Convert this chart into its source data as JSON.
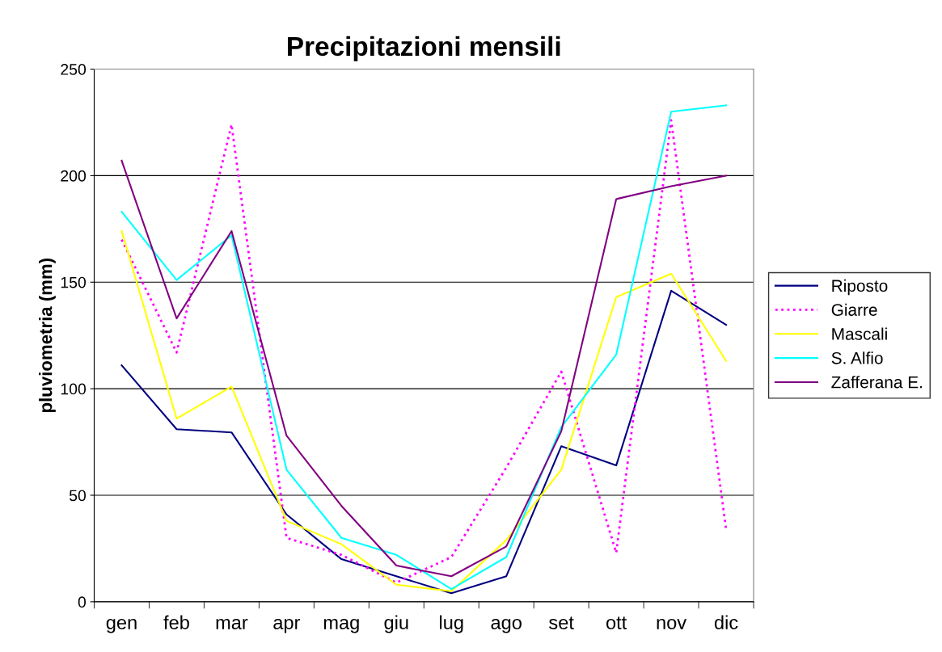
{
  "chart_data": {
    "type": "line",
    "title": "Precipitazioni mensili",
    "ylabel": "pluviometria (mm)",
    "categories": [
      "gen",
      "feb",
      "mar",
      "apr",
      "mag",
      "giu",
      "lug",
      "ago",
      "set",
      "ott",
      "nov",
      "dic"
    ],
    "series": [
      {
        "name": "Riposto",
        "color": "#000080",
        "values": [
          111,
          81,
          79.5,
          41,
          20,
          12,
          4,
          12,
          73,
          64,
          146,
          130
        ]
      },
      {
        "name": "Giarre",
        "color": "#ff00ff",
        "line_style": "dotted",
        "values": [
          170,
          117,
          224,
          30,
          22,
          9,
          21,
          63,
          108,
          23,
          226,
          34
        ]
      },
      {
        "name": "Mascali",
        "color": "#ffff00",
        "values": [
          174,
          86,
          101,
          38,
          27,
          8,
          5,
          29,
          62,
          143,
          154,
          113
        ]
      },
      {
        "name": "S. Alfio",
        "color": "#00ffff",
        "values": [
          183,
          151,
          172,
          62,
          30,
          22,
          6,
          21,
          82,
          116,
          230,
          233
        ]
      },
      {
        "name": "Zafferana E.",
        "color": "#800080",
        "values": [
          207,
          133,
          174,
          78,
          45,
          17,
          12,
          26,
          80,
          189,
          195,
          200
        ]
      }
    ],
    "ylim": [
      0,
      250
    ],
    "yticks": [
      0,
      50,
      100,
      150,
      200,
      250
    ],
    "grid": "y",
    "legend": "right",
    "marker": "none",
    "line_style": "solid"
  }
}
